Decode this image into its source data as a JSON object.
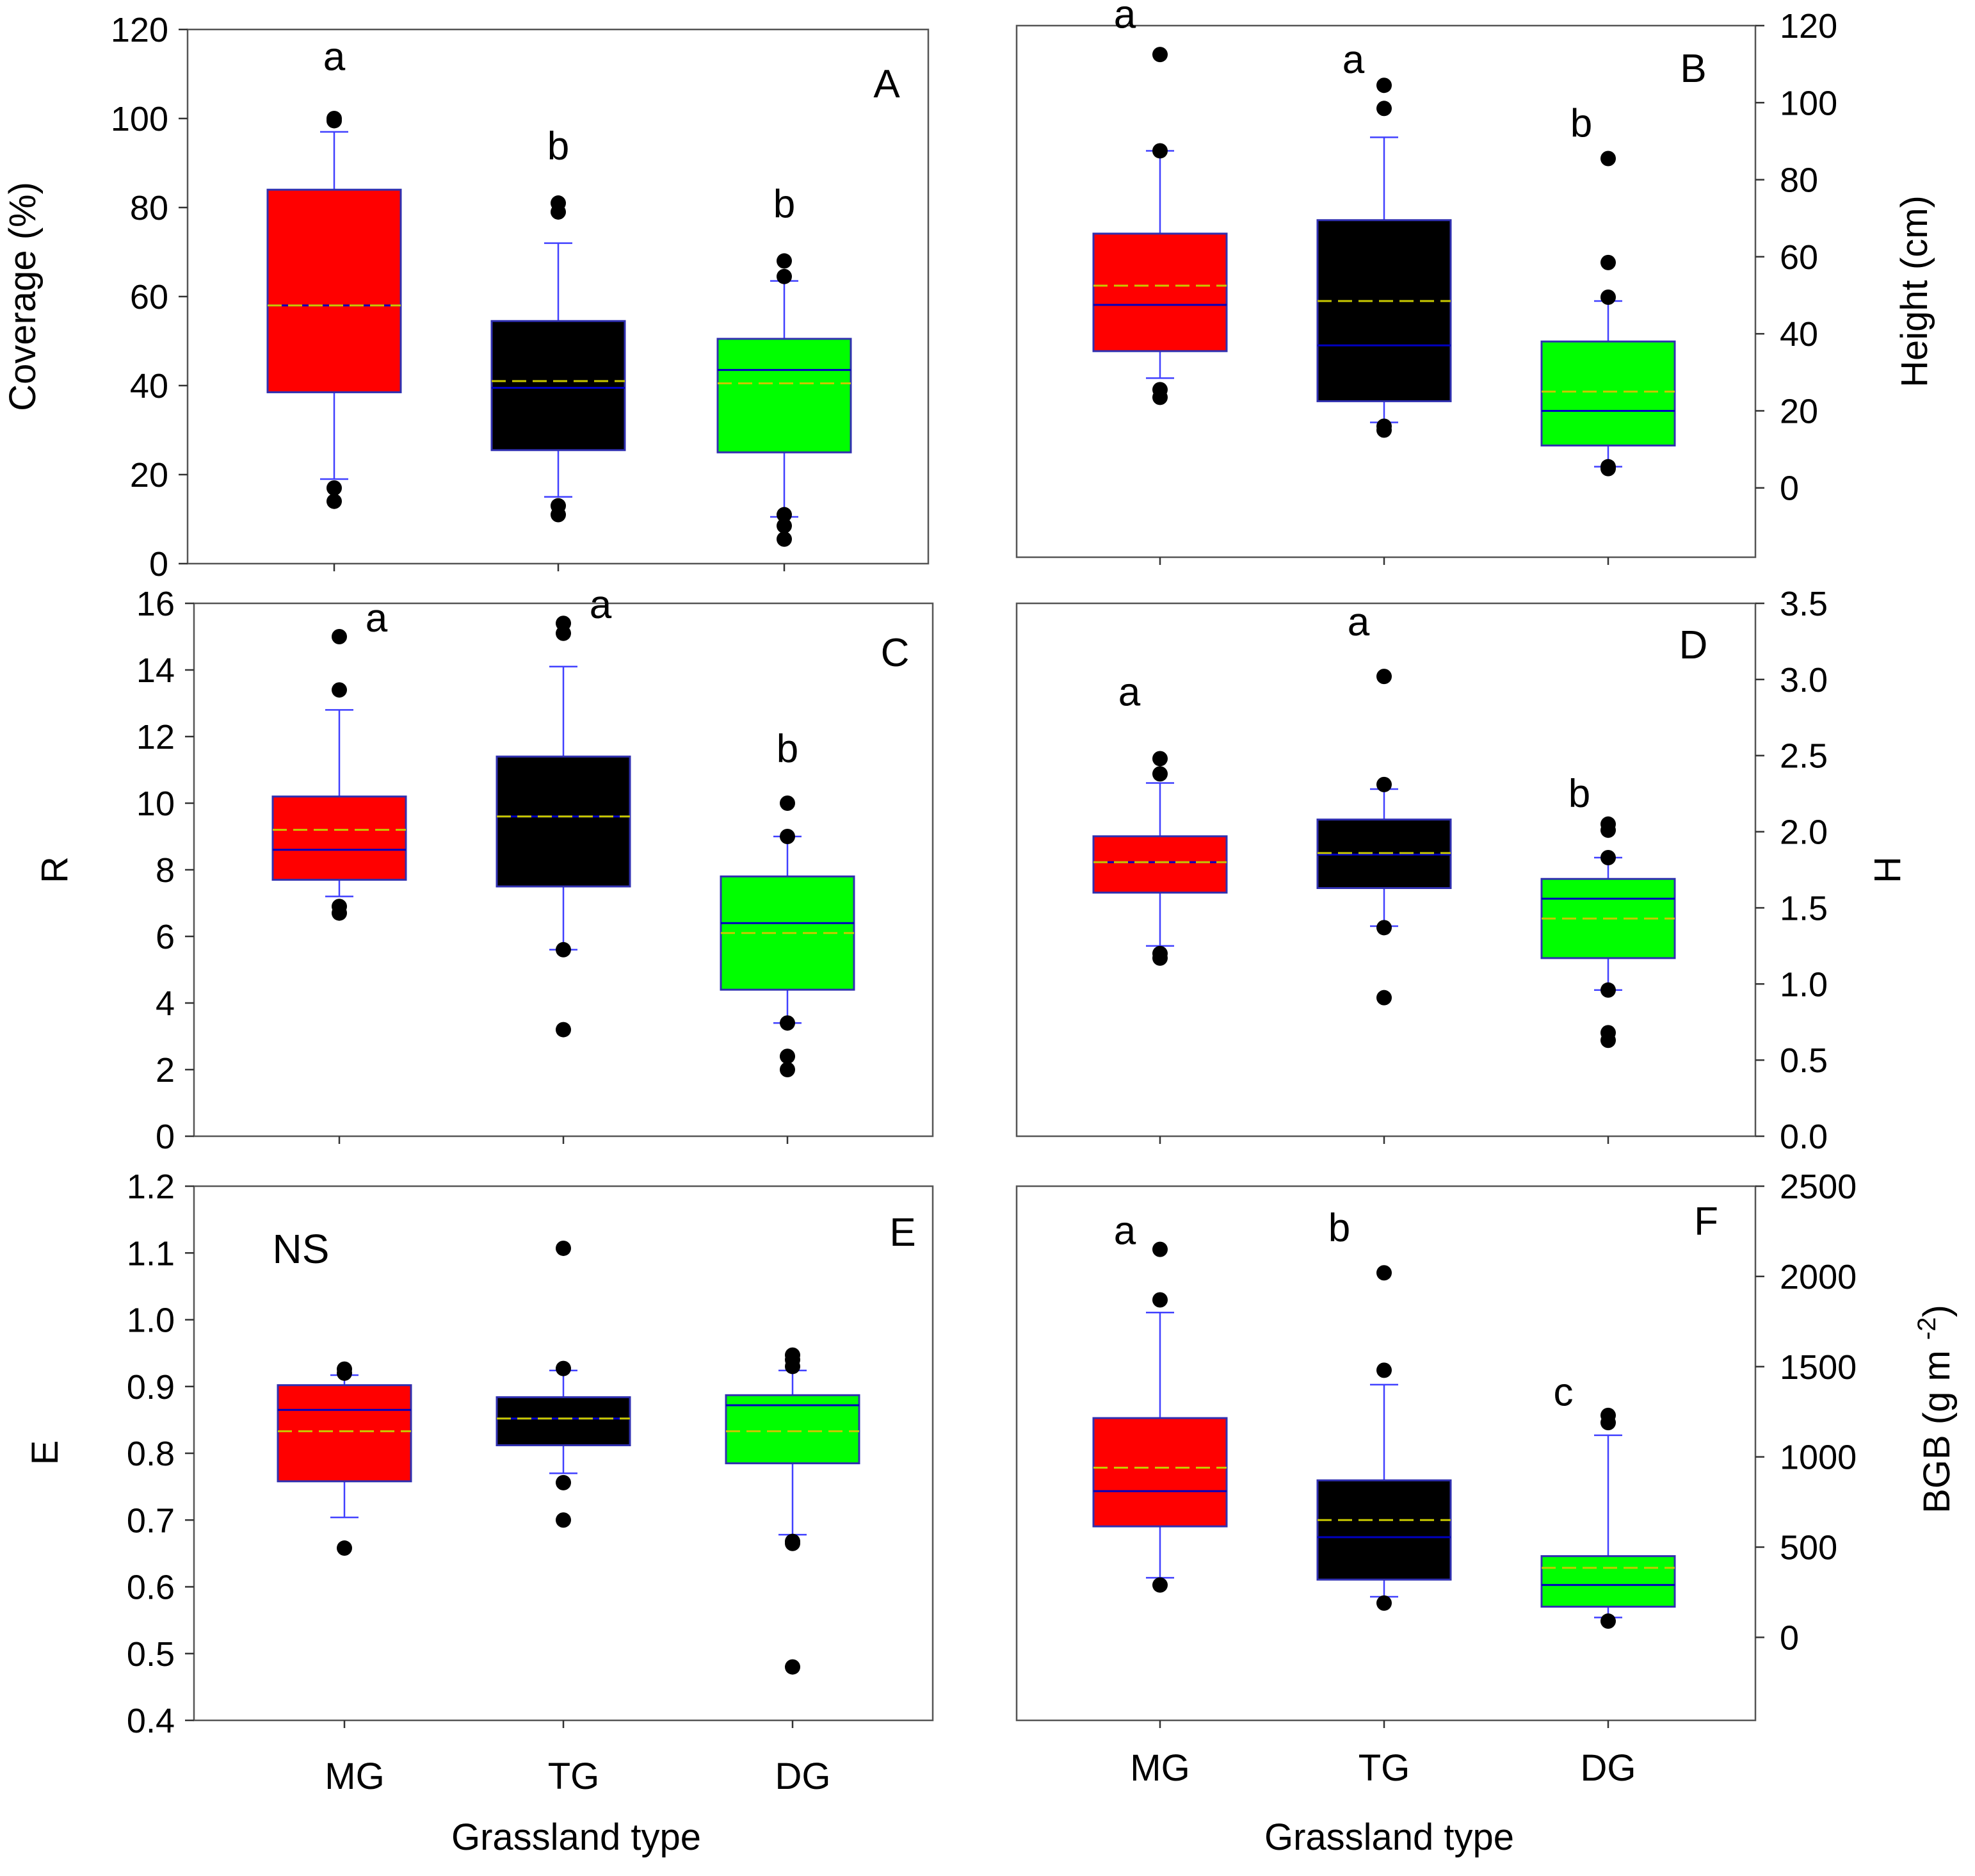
{
  "figure": {
    "x_axis_title_left": "Grassland type",
    "x_axis_title_right": "Grassland type"
  },
  "colors": {
    "MG": "#ff0000",
    "TG": "#000000",
    "DG": "#00ff00",
    "whisker": "#4040ff",
    "mean": "#c8c800",
    "median": "#0000c0"
  },
  "chart_data": [
    {
      "panel": "A",
      "type": "box",
      "ylabel": "Coverage (%)",
      "yaxis_side": "left",
      "ylim": [
        0,
        120
      ],
      "yticks": [
        "0",
        "20",
        "40",
        "60",
        "80",
        "100",
        "120"
      ],
      "categories": [
        "MG",
        "TG",
        "DG"
      ],
      "boxes": [
        {
          "q1": 38.5,
          "median": 58,
          "mean": 58,
          "q3": 84,
          "wlo": 19,
          "whi": 97,
          "outliers": [
            17,
            14,
            100,
            99.5
          ]
        },
        {
          "q1": 25.5,
          "median": 39.5,
          "mean": 41,
          "q3": 54.5,
          "wlo": 15,
          "whi": 72,
          "outliers": [
            13,
            11,
            81,
            79
          ]
        },
        {
          "q1": 25,
          "median": 43.5,
          "mean": 40.5,
          "q3": 50.5,
          "wlo": 10.5,
          "whi": 63.5,
          "outliers": [
            11,
            8.5,
            5.5,
            64.5,
            68
          ]
        }
      ],
      "letters": [
        "a",
        "b",
        "b"
      ]
    },
    {
      "panel": "B",
      "type": "box",
      "ylabel": "Height (cm)",
      "yaxis_side": "right",
      "ylim": [
        -18,
        120
      ],
      "yticks": [
        "0",
        "20",
        "40",
        "60",
        "80",
        "100",
        "120"
      ],
      "categories": [
        "MG",
        "TG",
        "DG"
      ],
      "boxes": [
        {
          "q1": 35.5,
          "median": 47.5,
          "mean": 52.5,
          "q3": 66,
          "wlo": 28.5,
          "whi": 87.5,
          "outliers": [
            25.5,
            23.5,
            87.5,
            112.5
          ]
        },
        {
          "q1": 22.5,
          "median": 37,
          "mean": 48.5,
          "q3": 69.5,
          "wlo": 17,
          "whi": 91,
          "outliers": [
            16,
            15,
            98.5,
            104.5
          ]
        },
        {
          "q1": 11,
          "median": 20,
          "mean": 25,
          "q3": 38,
          "wlo": 5.5,
          "whi": 48.5,
          "outliers": [
            5.5,
            5,
            49.5,
            58.5,
            85.5
          ]
        }
      ],
      "letters": [
        "a",
        "a",
        "b"
      ]
    },
    {
      "panel": "C",
      "type": "box",
      "ylabel": "R",
      "yaxis_side": "left",
      "ylim": [
        0,
        16
      ],
      "yticks": [
        "0",
        "2",
        "4",
        "6",
        "8",
        "10",
        "12",
        "14",
        "16"
      ],
      "categories": [
        "MG",
        "TG",
        "DG"
      ],
      "boxes": [
        {
          "q1": 7.7,
          "median": 8.6,
          "mean": 9.2,
          "q3": 10.2,
          "wlo": 7.2,
          "whi": 12.8,
          "outliers": [
            6.9,
            6.7,
            13.4,
            15
          ]
        },
        {
          "q1": 7.5,
          "median": 9.6,
          "mean": 9.6,
          "q3": 11.4,
          "wlo": 5.6,
          "whi": 14.1,
          "outliers": [
            5.6,
            3.2,
            15.1,
            15.4
          ]
        },
        {
          "q1": 4.4,
          "median": 6.4,
          "mean": 6.1,
          "q3": 7.8,
          "wlo": 3.4,
          "whi": 9,
          "outliers": [
            3.4,
            2.4,
            2,
            9,
            10
          ]
        }
      ],
      "letters": [
        "a",
        "a",
        "b"
      ]
    },
    {
      "panel": "D",
      "type": "box",
      "ylabel": "H",
      "yaxis_side": "right",
      "ylim": [
        0,
        3.5
      ],
      "yticks": [
        "0.0",
        "0.5",
        "1.0",
        "1.5",
        "2.0",
        "2.5",
        "3.0",
        "3.5"
      ],
      "categories": [
        "MG",
        "TG",
        "DG"
      ],
      "boxes": [
        {
          "q1": 1.6,
          "median": 1.8,
          "mean": 1.8,
          "q3": 1.97,
          "wlo": 1.25,
          "whi": 2.32,
          "outliers": [
            1.2,
            1.17,
            2.38,
            2.48
          ]
        },
        {
          "q1": 1.63,
          "median": 1.85,
          "mean": 1.86,
          "q3": 2.08,
          "wlo": 1.38,
          "whi": 2.28,
          "outliers": [
            1.37,
            0.91,
            2.31,
            3.02
          ]
        },
        {
          "q1": 1.17,
          "median": 1.56,
          "mean": 1.43,
          "q3": 1.69,
          "wlo": 0.96,
          "whi": 1.83,
          "outliers": [
            0.96,
            0.68,
            0.63,
            1.83,
            2.01,
            2.05
          ]
        }
      ],
      "letters": [
        "a",
        "a",
        "b"
      ]
    },
    {
      "panel": "E",
      "type": "box",
      "ylabel": "E",
      "yaxis_side": "left",
      "ylim": [
        0.4,
        1.2
      ],
      "yticks": [
        "0.4",
        "0.5",
        "0.6",
        "0.7",
        "0.8",
        "0.9",
        "1.0",
        "1.1",
        "1.2"
      ],
      "categories": [
        "MG",
        "TG",
        "DG"
      ],
      "boxes": [
        {
          "q1": 0.758,
          "median": 0.865,
          "mean": 0.833,
          "q3": 0.902,
          "wlo": 0.704,
          "whi": 0.917,
          "outliers": [
            0.658,
            0.92,
            0.926
          ]
        },
        {
          "q1": 0.812,
          "median": 0.852,
          "mean": 0.852,
          "q3": 0.884,
          "wlo": 0.77,
          "whi": 0.924,
          "outliers": [
            0.756,
            0.7,
            0.927,
            1.107
          ]
        },
        {
          "q1": 0.785,
          "median": 0.872,
          "mean": 0.833,
          "q3": 0.887,
          "wlo": 0.678,
          "whi": 0.924,
          "outliers": [
            0.668,
            0.665,
            0.48,
            0.93,
            0.94,
            0.947
          ]
        }
      ],
      "letters": [],
      "note": "NS"
    },
    {
      "panel": "F",
      "type": "box",
      "ylabel": "BGB (g m",
      "ylabel_superscript": "-2",
      "ylabel_close": ")",
      "yaxis_side": "right",
      "ylim": [
        -460,
        2500
      ],
      "yticks": [
        "0",
        "500",
        "1000",
        "1500",
        "2000",
        "2500"
      ],
      "categories": [
        "MG",
        "TG",
        "DG"
      ],
      "boxes": [
        {
          "q1": 615,
          "median": 810,
          "mean": 940,
          "q3": 1215,
          "wlo": 330,
          "whi": 1800,
          "outliers": [
            290,
            1870,
            2150
          ]
        },
        {
          "q1": 320,
          "median": 555,
          "mean": 650,
          "q3": 870,
          "wlo": 225,
          "whi": 1400,
          "outliers": [
            190,
            1480,
            2020
          ]
        },
        {
          "q1": 170,
          "median": 290,
          "mean": 385,
          "q3": 450,
          "wlo": 110,
          "whi": 1120,
          "outliers": [
            90,
            1190,
            1230
          ]
        }
      ],
      "letters": [
        "a",
        "b",
        "c"
      ]
    }
  ]
}
